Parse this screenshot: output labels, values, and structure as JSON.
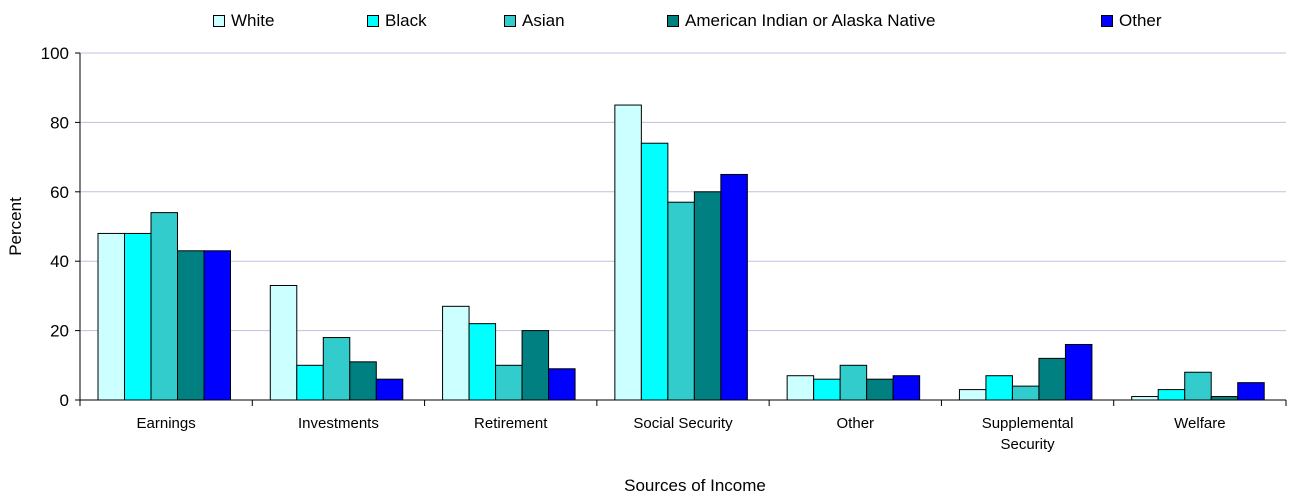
{
  "chart_data": {
    "type": "bar",
    "categories": [
      [
        "Earnings"
      ],
      [
        "Investments"
      ],
      [
        "Retirement"
      ],
      [
        "Social Security"
      ],
      [
        "Other"
      ],
      [
        "Supplemental",
        "Security"
      ],
      [
        "Welfare"
      ]
    ],
    "series": [
      {
        "name": "White",
        "color": "#ccffff",
        "values": [
          48,
          33,
          27,
          85,
          7,
          3,
          1
        ]
      },
      {
        "name": "Black",
        "color": "#00ffff",
        "values": [
          48,
          10,
          22,
          74,
          6,
          7,
          3
        ]
      },
      {
        "name": "Asian",
        "color": "#33cccc",
        "values": [
          54,
          18,
          10,
          57,
          10,
          4,
          8
        ]
      },
      {
        "name": "American Indian or Alaska Native",
        "color": "#008080",
        "values": [
          43,
          11,
          20,
          60,
          6,
          12,
          1
        ]
      },
      {
        "name": "Other",
        "color": "#0000ff",
        "values": [
          43,
          6,
          9,
          65,
          7,
          16,
          5
        ]
      }
    ],
    "xlabel": "Sources of Income",
    "ylabel": "Percent",
    "ylim": [
      0,
      100
    ],
    "yticks": [
      0,
      20,
      40,
      60,
      80,
      100
    ],
    "grid": true,
    "legend_position": "top"
  }
}
